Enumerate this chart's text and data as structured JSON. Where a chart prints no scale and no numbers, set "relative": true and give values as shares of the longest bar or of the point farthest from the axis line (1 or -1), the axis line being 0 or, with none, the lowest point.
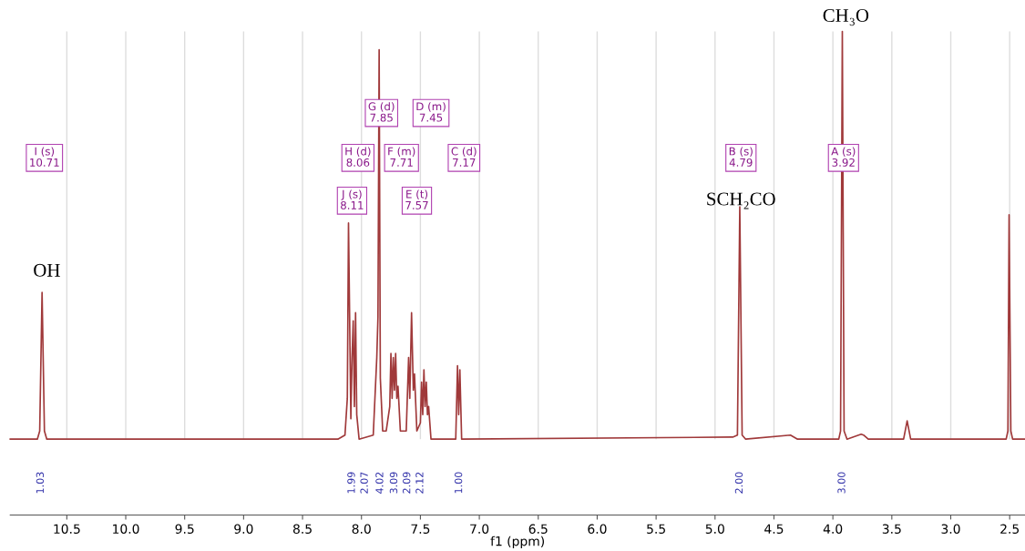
{
  "chart_data": {
    "type": "line",
    "relative": true,
    "xlabel": "f1 (ppm)",
    "xlim": [
      10.98,
      2.37
    ],
    "xticks": [
      10.5,
      {
        "value": 10,
        "label": "10.0"
      },
      9.5,
      {
        "value": 9,
        "label": "9.0"
      },
      8.5,
      {
        "value": 8,
        "label": "8.0"
      },
      7.5,
      {
        "value": 7,
        "label": "7.0"
      },
      6.5,
      {
        "value": 6,
        "label": "6.0"
      },
      5.5,
      {
        "value": 5,
        "label": "5.0"
      },
      4.5,
      {
        "value": 4,
        "label": "4.0"
      },
      3.5,
      {
        "value": 3,
        "label": "3.0"
      },
      2.5
    ],
    "grid": "x",
    "marker": "none",
    "line_style": "solid",
    "series": [
      {
        "color": "#a0393a",
        "x": [
          10.98,
          10.75,
          10.73,
          10.71,
          10.69,
          10.67,
          8.2,
          8.14,
          8.12,
          8.11,
          8.09,
          8.08,
          8.07,
          8.06,
          8.05,
          8.04,
          8.02,
          7.9,
          7.87,
          7.86,
          7.85,
          7.84,
          7.82,
          7.79,
          7.76,
          7.75,
          7.74,
          7.73,
          7.72,
          7.71,
          7.7,
          7.69,
          7.67,
          7.62,
          7.6,
          7.59,
          7.575,
          7.56,
          7.55,
          7.53,
          7.5,
          7.49,
          7.48,
          7.47,
          7.46,
          7.45,
          7.44,
          7.43,
          7.41,
          7.2,
          7.185,
          7.175,
          7.165,
          7.15,
          4.85,
          4.81,
          4.79,
          4.77,
          4.74,
          4.36,
          4.3,
          3.95,
          3.935,
          3.92,
          3.905,
          3.88,
          3.76,
          3.74,
          3.7,
          3.4,
          3.37,
          3.34,
          2.53,
          2.515,
          2.505,
          2.49,
          2.475,
          2.37
        ],
        "values": [
          0,
          0,
          0.02,
          0.36,
          0.02,
          0,
          0,
          0.01,
          0.1,
          0.53,
          0.05,
          0.2,
          0.29,
          0.08,
          0.31,
          0.06,
          0,
          0.01,
          0.2,
          0.3,
          0.955,
          0.15,
          0.02,
          0.02,
          0.08,
          0.21,
          0.1,
          0.2,
          0.12,
          0.21,
          0.1,
          0.13,
          0.02,
          0.02,
          0.2,
          0.1,
          0.31,
          0.12,
          0.16,
          0.02,
          0.04,
          0.14,
          0.06,
          0.17,
          0.08,
          0.14,
          0.06,
          0.08,
          0,
          0,
          0.18,
          0.06,
          0.17,
          0,
          0.005,
          0.01,
          0.57,
          0.01,
          0,
          0.01,
          0,
          0,
          0.02,
          1.0,
          0.02,
          0,
          0.012,
          0.01,
          0,
          0,
          0.045,
          0,
          0,
          0.02,
          0.55,
          0.02,
          0,
          0
        ]
      }
    ],
    "annotations": [
      "I (s)\n10.71",
      "H (d)\n8.06",
      "F (m)\n7.71",
      "G (d)\n7.85",
      "D (m)\n7.45",
      "J (s)\n8.11",
      "E (t)\n7.57",
      "C (d)\n7.17",
      "B (s)\n4.79",
      "A (s)\n3.92",
      "CH₃O",
      "SCH₂CO",
      "OH",
      "1.03",
      "1.99",
      "2.07",
      "4.02",
      "3.09",
      "2.09",
      "2.12",
      "1.00",
      "2.00",
      "3.00"
    ]
  }
}
